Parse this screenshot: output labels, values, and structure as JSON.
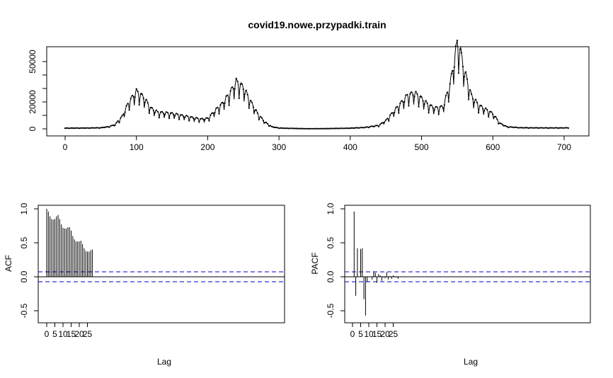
{
  "chart_data": [
    {
      "type": "line",
      "title": "covid19.nowe.przypadki.train",
      "xlabel": "",
      "ylabel": "",
      "xlim": [
        0,
        710
      ],
      "ylim": [
        0,
        60000
      ],
      "x_ticks": [
        "0",
        "100",
        "200",
        "300",
        "400",
        "500",
        "600",
        "700"
      ],
      "y_ticks": [
        "0",
        "10000",
        "20000",
        "30000",
        "40000",
        "50000"
      ],
      "y_tick_labels": [
        "0",
        "20000",
        "50000"
      ],
      "grid": false,
      "points_marked": true,
      "series": [
        {
          "anchors": [
            [
              0,
              500
            ],
            [
              30,
              600
            ],
            [
              50,
              800
            ],
            [
              60,
              1500
            ],
            [
              70,
              3000
            ],
            [
              80,
              9000
            ],
            [
              90,
              20000
            ],
            [
              100,
              27000
            ],
            [
              110,
              23000
            ],
            [
              120,
              15000
            ],
            [
              130,
              12000
            ],
            [
              150,
              11000
            ],
            [
              170,
              9000
            ],
            [
              190,
              7000
            ],
            [
              200,
              7500
            ],
            [
              210,
              13000
            ],
            [
              220,
              18000
            ],
            [
              230,
              25000
            ],
            [
              240,
              34000
            ],
            [
              250,
              30000
            ],
            [
              260,
              20000
            ],
            [
              270,
              11000
            ],
            [
              280,
              5000
            ],
            [
              290,
              1500
            ],
            [
              300,
              600
            ],
            [
              320,
              300
            ],
            [
              340,
              100
            ],
            [
              360,
              150
            ],
            [
              380,
              300
            ],
            [
              400,
              500
            ],
            [
              420,
              1000
            ],
            [
              440,
              2500
            ],
            [
              450,
              6000
            ],
            [
              460,
              12000
            ],
            [
              470,
              18000
            ],
            [
              480,
              24000
            ],
            [
              490,
              26000
            ],
            [
              500,
              22000
            ],
            [
              510,
              17000
            ],
            [
              520,
              15000
            ],
            [
              530,
              16000
            ],
            [
              540,
              32000
            ],
            [
              550,
              62000
            ],
            [
              555,
              55000
            ],
            [
              560,
              42000
            ],
            [
              570,
              24000
            ],
            [
              580,
              17000
            ],
            [
              590,
              14000
            ],
            [
              600,
              11000
            ],
            [
              610,
              4000
            ],
            [
              620,
              1500
            ],
            [
              640,
              800
            ],
            [
              670,
              700
            ],
            [
              700,
              700
            ],
            [
              706,
              800
            ]
          ]
        }
      ]
    },
    {
      "type": "bar",
      "xlabel": "Lag",
      "ylabel": "ACF",
      "xlim": [
        0,
        28
      ],
      "ylim": [
        -0.6,
        1.0
      ],
      "x_ticks": [
        "0",
        "5",
        "10",
        "15",
        "20",
        "25"
      ],
      "y_ticks": [
        "-0.5",
        "0.0",
        "0.5",
        "1.0"
      ],
      "lags": [
        0,
        1,
        2,
        3,
        4,
        5,
        6,
        7,
        8,
        9,
        10,
        11,
        12,
        13,
        14,
        15,
        16,
        17,
        18,
        19,
        20,
        21,
        22,
        23,
        24,
        25,
        26,
        27,
        28
      ],
      "values": [
        1.0,
        0.96,
        0.89,
        0.85,
        0.84,
        0.85,
        0.89,
        0.91,
        0.85,
        0.77,
        0.72,
        0.71,
        0.71,
        0.73,
        0.73,
        0.68,
        0.6,
        0.55,
        0.52,
        0.52,
        0.52,
        0.53,
        0.48,
        0.42,
        0.38,
        0.37,
        0.37,
        0.39,
        0.4
      ],
      "ci": 0.073,
      "ci_color": "#0000cc"
    },
    {
      "type": "bar",
      "xlabel": "Lag",
      "ylabel": "PACF",
      "xlim": [
        0,
        28
      ],
      "ylim": [
        -0.6,
        1.0
      ],
      "x_ticks": [
        "0",
        "5",
        "10",
        "15",
        "20",
        "25"
      ],
      "y_ticks": [
        "-0.5",
        "0.0",
        "0.5",
        "1.0"
      ],
      "lags": [
        1,
        2,
        3,
        4,
        5,
        6,
        7,
        8,
        9,
        10,
        11,
        12,
        13,
        14,
        15,
        16,
        17,
        18,
        19,
        20,
        21,
        22,
        23,
        24,
        25,
        26,
        27,
        28
      ],
      "values": [
        0.96,
        -0.28,
        0.42,
        0.0,
        0.41,
        0.42,
        -0.33,
        -0.57,
        -0.07,
        0.0,
        0.0,
        -0.04,
        0.08,
        0.06,
        -0.09,
        0.04,
        0.02,
        -0.06,
        -0.01,
        -0.02,
        0.07,
        -0.04,
        0.01,
        -0.03,
        0.02,
        0.01,
        -0.01,
        -0.03
      ],
      "ci": 0.073,
      "ci_color": "#0000cc"
    }
  ]
}
